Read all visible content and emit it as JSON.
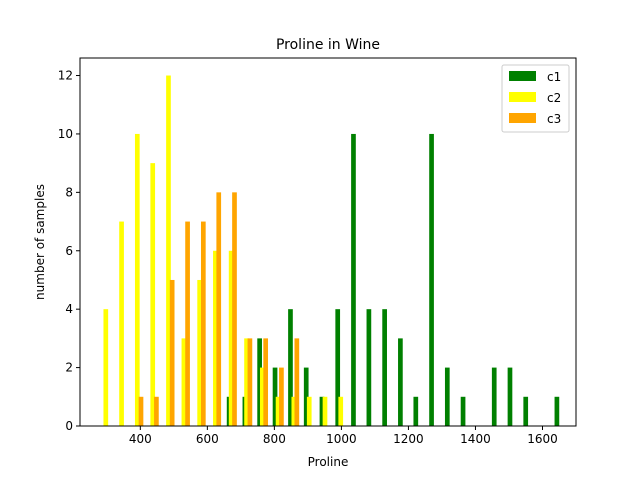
{
  "chart_data": {
    "type": "bar",
    "title": "Proline in Wine",
    "xlabel": "Proline",
    "ylabel": "number of samples",
    "xlim": [
      220,
      1700
    ],
    "ylim": [
      0,
      12.6
    ],
    "xticks": [
      400,
      600,
      800,
      1000,
      1200,
      1400,
      1600
    ],
    "yticks": [
      0,
      2,
      4,
      6,
      8,
      10,
      12
    ],
    "legend_position": "top-right",
    "grid": false,
    "bar_width": 14,
    "series": [
      {
        "name": "c1",
        "color": "#008000",
        "bars": [
          {
            "x": 665,
            "y": 1
          },
          {
            "x": 712,
            "y": 1
          },
          {
            "x": 756,
            "y": 3
          },
          {
            "x": 802,
            "y": 2
          },
          {
            "x": 848,
            "y": 4
          },
          {
            "x": 895,
            "y": 2
          },
          {
            "x": 942,
            "y": 1
          },
          {
            "x": 989,
            "y": 4
          },
          {
            "x": 1036,
            "y": 10
          },
          {
            "x": 1082,
            "y": 4
          },
          {
            "x": 1129,
            "y": 4
          },
          {
            "x": 1176,
            "y": 3
          },
          {
            "x": 1222,
            "y": 1
          },
          {
            "x": 1269,
            "y": 10
          },
          {
            "x": 1316,
            "y": 2
          },
          {
            "x": 1363,
            "y": 1
          },
          {
            "x": 1456,
            "y": 2
          },
          {
            "x": 1503,
            "y": 2
          },
          {
            "x": 1550,
            "y": 1
          },
          {
            "x": 1643,
            "y": 1
          }
        ]
      },
      {
        "name": "c2",
        "color": "#ffff00",
        "bars": [
          {
            "x": 297,
            "y": 4
          },
          {
            "x": 344,
            "y": 7
          },
          {
            "x": 391,
            "y": 10
          },
          {
            "x": 437,
            "y": 9
          },
          {
            "x": 484,
            "y": 12
          },
          {
            "x": 530,
            "y": 3
          },
          {
            "x": 577,
            "y": 5
          },
          {
            "x": 624,
            "y": 6
          },
          {
            "x": 671,
            "y": 6
          },
          {
            "x": 717,
            "y": 3
          },
          {
            "x": 764,
            "y": 2
          },
          {
            "x": 811,
            "y": 1
          },
          {
            "x": 858,
            "y": 1
          },
          {
            "x": 904,
            "y": 1
          },
          {
            "x": 951,
            "y": 1
          },
          {
            "x": 998,
            "y": 1
          }
        ]
      },
      {
        "name": "c3",
        "color": "#ffa500",
        "bars": [
          {
            "x": 402,
            "y": 1
          },
          {
            "x": 448,
            "y": 1
          },
          {
            "x": 495,
            "y": 5
          },
          {
            "x": 541,
            "y": 7
          },
          {
            "x": 588,
            "y": 7
          },
          {
            "x": 634,
            "y": 8
          },
          {
            "x": 681,
            "y": 8
          },
          {
            "x": 727,
            "y": 3
          },
          {
            "x": 774,
            "y": 3
          },
          {
            "x": 821,
            "y": 2
          },
          {
            "x": 867,
            "y": 3
          }
        ]
      }
    ]
  }
}
